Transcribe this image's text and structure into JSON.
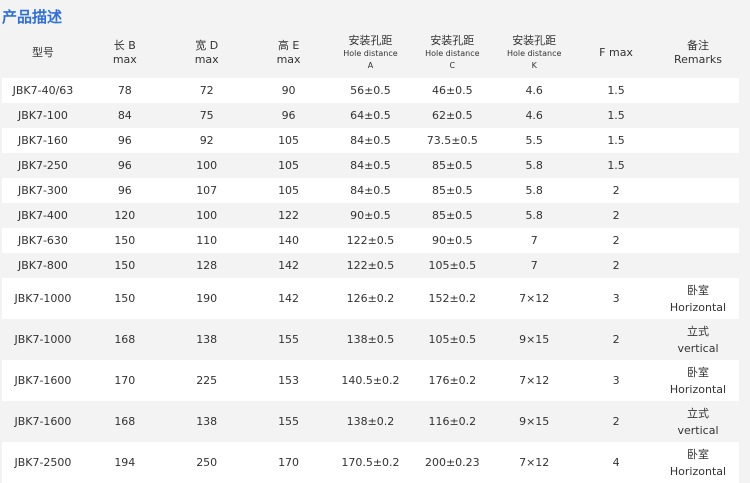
{
  "title": "产品描述",
  "headers": [
    {
      "l1": "型号",
      "l2": "",
      "l3": ""
    },
    {
      "l1": "长 B",
      "l2": "max",
      "l3": ""
    },
    {
      "l1": "宽 D",
      "l2": "max",
      "l3": ""
    },
    {
      "l1": "高 E",
      "l2": "max",
      "l3": ""
    },
    {
      "l1": "安装孔距",
      "l2": "Hole distance",
      "l3": "A"
    },
    {
      "l1": "安装孔距",
      "l2": "Hole distance",
      "l3": "C"
    },
    {
      "l1": "安装孔距",
      "l2": "Hole distance",
      "l3": "K"
    },
    {
      "l1": "F  max",
      "l2": "",
      "l3": ""
    },
    {
      "l1": "备注",
      "l2": "Remarks",
      "l3": ""
    }
  ],
  "rows": [
    [
      "JBK7-40/63",
      "78",
      "72",
      "90",
      "56±0.5",
      "46±0.5",
      "4.6",
      "1.5",
      "",
      ""
    ],
    [
      "JBK7-100",
      "84",
      "75",
      "96",
      "64±0.5",
      "62±0.5",
      "4.6",
      "1.5",
      "",
      ""
    ],
    [
      "JBK7-160",
      "96",
      "92",
      "105",
      "84±0.5",
      "73.5±0.5",
      "5.5",
      "1.5",
      "",
      ""
    ],
    [
      "JBK7-250",
      "96",
      "100",
      "105",
      "84±0.5",
      "85±0.5",
      "5.8",
      "1.5",
      "",
      ""
    ],
    [
      "JBK7-300",
      "96",
      "107",
      "105",
      "84±0.5",
      "85±0.5",
      "5.8",
      "2",
      "",
      ""
    ],
    [
      "JBK7-400",
      "120",
      "100",
      "122",
      "90±0.5",
      "85±0.5",
      "5.8",
      "2",
      "",
      ""
    ],
    [
      "JBK7-630",
      "150",
      "110",
      "140",
      "122±0.5",
      "90±0.5",
      "7",
      "2",
      "",
      ""
    ],
    [
      "JBK7-800",
      "150",
      "128",
      "142",
      "122±0.5",
      "105±0.5",
      "7",
      "2",
      "",
      ""
    ],
    [
      "JBK7-1000",
      "150",
      "190",
      "142",
      "126±0.2",
      "152±0.2",
      "7×12",
      "3",
      "卧室",
      "Horizontal"
    ],
    [
      "JBK7-1000",
      "168",
      "138",
      "155",
      "138±0.5",
      "105±0.5",
      "9×15",
      "2",
      "立式",
      "vertical"
    ],
    [
      "JBK7-1600",
      "170",
      "225",
      "153",
      "140.5±0.2",
      "176±0.2",
      "7×12",
      "3",
      "卧室",
      "Horizontal"
    ],
    [
      "JBK7-1600",
      "168",
      "138",
      "155",
      "138±0.2",
      "116±0.2",
      "9×15",
      "2",
      "立式",
      "vertical"
    ],
    [
      "JBK7-2500",
      "194",
      "250",
      "170",
      "170.5±0.2",
      "200±0.23",
      "7×12",
      "4",
      "卧室",
      "Horizontal"
    ]
  ]
}
